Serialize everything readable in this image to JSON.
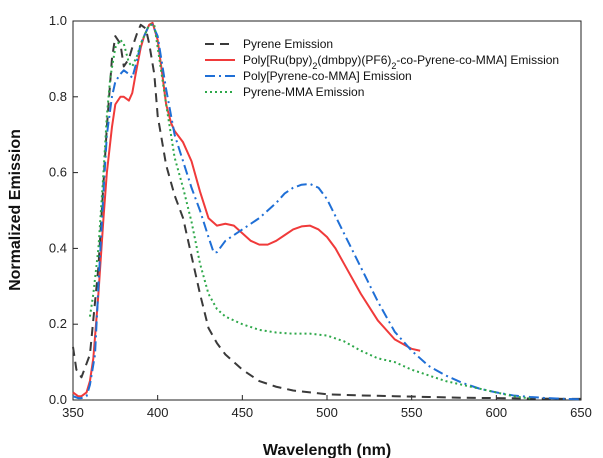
{
  "chart_data": {
    "type": "line",
    "xlabel": "Wavelength (nm)",
    "ylabel": "Normalized Emission",
    "xlim": [
      350,
      650
    ],
    "ylim": [
      0,
      1.0
    ],
    "xticks": [
      350,
      400,
      450,
      500,
      550,
      600,
      650
    ],
    "yticks": [
      0.0,
      0.2,
      0.4,
      0.6,
      0.8,
      1.0
    ],
    "xtick_labels": [
      "350",
      "400",
      "450",
      "500",
      "550",
      "600",
      "650"
    ],
    "ytick_labels": [
      "0.0",
      "0.2",
      "0.4",
      "0.6",
      "0.8",
      "1.0"
    ],
    "legend_position": "top-right",
    "grid": false,
    "series": [
      {
        "name": "Pyrene Emission",
        "color": "#3a3a3a",
        "dash": "dash",
        "x": [
          350,
          352,
          355,
          360,
          365,
          370,
          373,
          375,
          378,
          380,
          383,
          385,
          388,
          390,
          393,
          395,
          398,
          400,
          405,
          410,
          415,
          420,
          425,
          430,
          435,
          440,
          450,
          460,
          470,
          480,
          490,
          500,
          520,
          540,
          560,
          580,
          600,
          620,
          640,
          650
        ],
        "y": [
          0.14,
          0.08,
          0.06,
          0.12,
          0.35,
          0.72,
          0.9,
          0.96,
          0.94,
          0.88,
          0.9,
          0.93,
          0.97,
          0.99,
          0.98,
          0.94,
          0.86,
          0.75,
          0.62,
          0.54,
          0.48,
          0.38,
          0.28,
          0.19,
          0.15,
          0.12,
          0.08,
          0.05,
          0.035,
          0.025,
          0.02,
          0.015,
          0.012,
          0.01,
          0.008,
          0.006,
          0.005,
          0.004,
          0.003,
          0.003
        ]
      },
      {
        "name": "Poly[Ru(bpy)2(dmbpy)(PF6)2-co-Pyrene-co-MMA] Emission",
        "color": "#f03a3a",
        "dash": "solid",
        "x": [
          350,
          353,
          355,
          358,
          360,
          362,
          365,
          368,
          370,
          373,
          375,
          378,
          380,
          383,
          385,
          387,
          390,
          392,
          395,
          397,
          400,
          403,
          405,
          408,
          410,
          415,
          420,
          425,
          430,
          435,
          440,
          445,
          450,
          455,
          460,
          465,
          470,
          475,
          480,
          485,
          490,
          495,
          500,
          505,
          510,
          520,
          530,
          540,
          550,
          555
        ],
        "y": [
          0.02,
          0.01,
          0.01,
          0.02,
          0.05,
          0.11,
          0.28,
          0.48,
          0.6,
          0.72,
          0.78,
          0.8,
          0.8,
          0.79,
          0.81,
          0.86,
          0.93,
          0.96,
          0.99,
          0.995,
          0.95,
          0.85,
          0.78,
          0.73,
          0.71,
          0.68,
          0.63,
          0.55,
          0.48,
          0.46,
          0.465,
          0.46,
          0.44,
          0.42,
          0.41,
          0.41,
          0.42,
          0.435,
          0.45,
          0.458,
          0.46,
          0.45,
          0.43,
          0.4,
          0.36,
          0.28,
          0.21,
          0.16,
          0.135,
          0.13
        ]
      },
      {
        "name": "Poly[Pyrene-co-MMA] Emission",
        "color": "#1f6fd6",
        "dash": "dashdot",
        "x": [
          350,
          353,
          355,
          358,
          360,
          363,
          365,
          368,
          370,
          373,
          375,
          378,
          380,
          383,
          385,
          388,
          390,
          393,
          395,
          397,
          400,
          405,
          410,
          415,
          420,
          425,
          430,
          433,
          435,
          440,
          450,
          460,
          470,
          475,
          480,
          485,
          490,
          495,
          500,
          510,
          520,
          530,
          540,
          550,
          560,
          570,
          580,
          590,
          600,
          610,
          620,
          630,
          640,
          650
        ],
        "y": [
          0.01,
          0.005,
          0.005,
          0.01,
          0.04,
          0.12,
          0.3,
          0.55,
          0.7,
          0.8,
          0.84,
          0.86,
          0.87,
          0.86,
          0.85,
          0.9,
          0.94,
          0.97,
          0.99,
          0.99,
          0.96,
          0.82,
          0.7,
          0.63,
          0.56,
          0.5,
          0.43,
          0.39,
          0.39,
          0.42,
          0.45,
          0.48,
          0.52,
          0.545,
          0.56,
          0.568,
          0.57,
          0.56,
          0.53,
          0.44,
          0.35,
          0.26,
          0.18,
          0.13,
          0.09,
          0.065,
          0.045,
          0.03,
          0.02,
          0.012,
          0.008,
          0.005,
          0.003,
          0.002
        ]
      },
      {
        "name": "Pyrene-MMA Emission",
        "color": "#2ea84a",
        "dash": "dot",
        "x": [
          360,
          362,
          365,
          368,
          370,
          372,
          375,
          378,
          380,
          383,
          385,
          388,
          390,
          393,
          395,
          398,
          400,
          405,
          410,
          415,
          420,
          425,
          430,
          435,
          440,
          445,
          450,
          460,
          470,
          480,
          490,
          500,
          510,
          520,
          530,
          540,
          550,
          560,
          570,
          580,
          590,
          600,
          610,
          620
        ],
        "y": [
          0.22,
          0.28,
          0.4,
          0.6,
          0.75,
          0.85,
          0.93,
          0.95,
          0.94,
          0.89,
          0.88,
          0.91,
          0.94,
          0.97,
          0.99,
          0.99,
          0.93,
          0.78,
          0.64,
          0.56,
          0.47,
          0.36,
          0.28,
          0.24,
          0.22,
          0.21,
          0.2,
          0.185,
          0.178,
          0.175,
          0.175,
          0.17,
          0.155,
          0.13,
          0.11,
          0.1,
          0.08,
          0.065,
          0.05,
          0.04,
          0.03,
          0.02,
          0.01,
          0.004
        ]
      }
    ]
  }
}
